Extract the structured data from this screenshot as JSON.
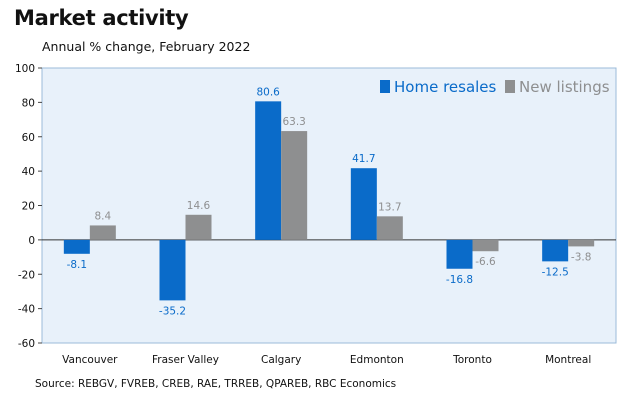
{
  "title": "Market activity",
  "subtitle": "Annual % change, February 2022",
  "source": "Source: REBGV, FVREB, CREB, RAE, TRREB, QPAREB, RBC Economics",
  "colors": {
    "home_resales": "#0a6bc9",
    "new_listings": "#8e8f90",
    "plot_bg": "#e8f1fa",
    "plot_border": "#9bbbd9"
  },
  "chart_data": {
    "type": "bar",
    "title": "Market activity",
    "subtitle": "Annual % change, February 2022",
    "categories": [
      "Vancouver",
      "Fraser Valley",
      "Calgary",
      "Edmonton",
      "Toronto",
      "Montreal"
    ],
    "series": [
      {
        "name": "Home resales",
        "values": [
          -8.1,
          -35.2,
          80.6,
          41.7,
          -16.8,
          -12.5
        ]
      },
      {
        "name": "New listings",
        "values": [
          8.4,
          14.6,
          63.3,
          13.7,
          -6.6,
          -3.8
        ]
      }
    ],
    "ylim": [
      -60,
      100
    ],
    "yticks": [
      -60,
      -40,
      -20,
      0,
      20,
      40,
      60,
      80,
      100
    ],
    "legend": "top-right",
    "grid": false
  }
}
